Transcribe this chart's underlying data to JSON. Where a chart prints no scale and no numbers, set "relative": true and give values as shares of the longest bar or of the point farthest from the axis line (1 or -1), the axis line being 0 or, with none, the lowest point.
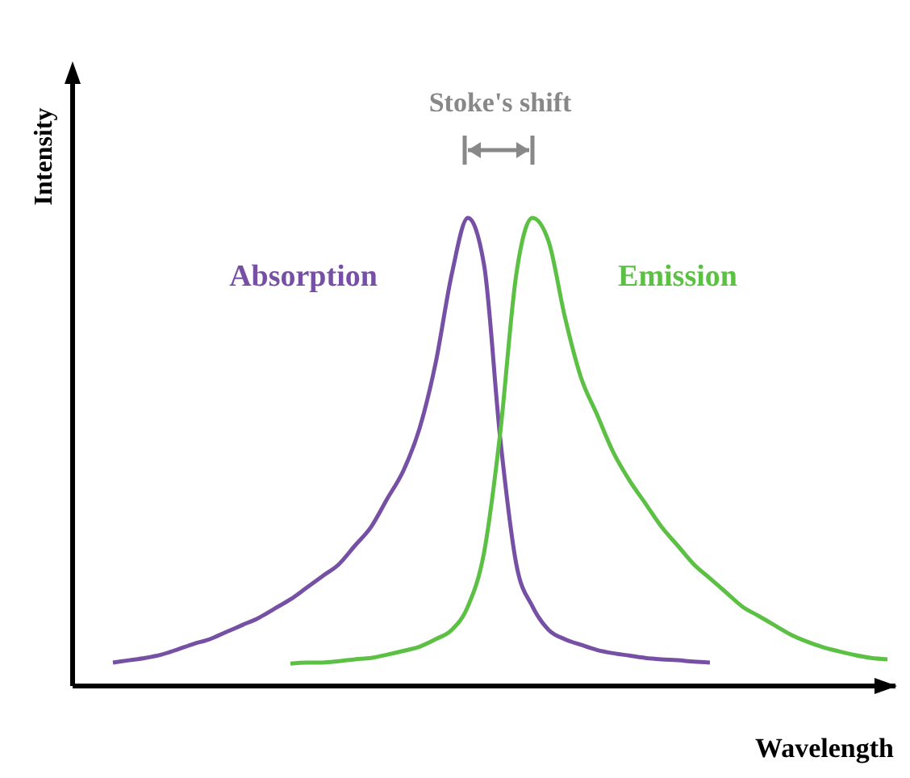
{
  "chart_data": {
    "type": "line",
    "relative": true,
    "marker": "none",
    "xlabel": "Wavelength",
    "ylabel": "Intensity",
    "annotations": [
      "Stoke's shift"
    ],
    "categories": [
      null,
      null,
      null,
      null,
      null,
      null,
      null,
      null,
      null,
      null,
      null,
      null,
      null,
      null,
      null,
      null,
      null,
      null,
      null,
      null,
      null,
      null,
      null,
      null,
      null,
      null,
      null,
      null,
      null,
      null,
      null,
      null,
      null,
      null,
      null,
      null,
      null,
      null,
      null,
      null,
      null,
      null,
      null,
      null,
      null,
      null,
      null,
      null,
      null
    ],
    "series": [
      {
        "name": "Absorption",
        "color": "#7650a4",
        "values": [
          0.05,
          0.055,
          0.06,
          0.067,
          0.078,
          0.09,
          0.1,
          0.115,
          0.13,
          0.145,
          0.165,
          0.185,
          0.21,
          0.235,
          0.26,
          0.3,
          0.34,
          0.4,
          0.46,
          0.55,
          0.69,
          0.88,
          1,
          0.9,
          0.53,
          0.26,
          0.17,
          0.12,
          0.1,
          0.088,
          0.077,
          0.07,
          0.065,
          0.06,
          0.057,
          0.055,
          0.052,
          0.05,
          null,
          null,
          null,
          null,
          null,
          null,
          null,
          null,
          null,
          null,
          null
        ]
      },
      {
        "name": "Emission",
        "color": "#5cc044",
        "values": [
          null,
          null,
          null,
          null,
          null,
          null,
          null,
          null,
          null,
          null,
          null,
          0.048,
          0.05,
          0.05,
          0.053,
          0.057,
          0.06,
          0.067,
          0.075,
          0.084,
          0.1,
          0.12,
          0.17,
          0.285,
          0.54,
          0.88,
          1,
          0.95,
          0.79,
          0.66,
          0.58,
          0.5,
          0.44,
          0.39,
          0.34,
          0.3,
          0.26,
          0.23,
          0.2,
          0.17,
          0.15,
          0.13,
          0.11,
          0.095,
          0.083,
          0.074,
          0.066,
          0.06,
          0.057
        ]
      }
    ]
  }
}
